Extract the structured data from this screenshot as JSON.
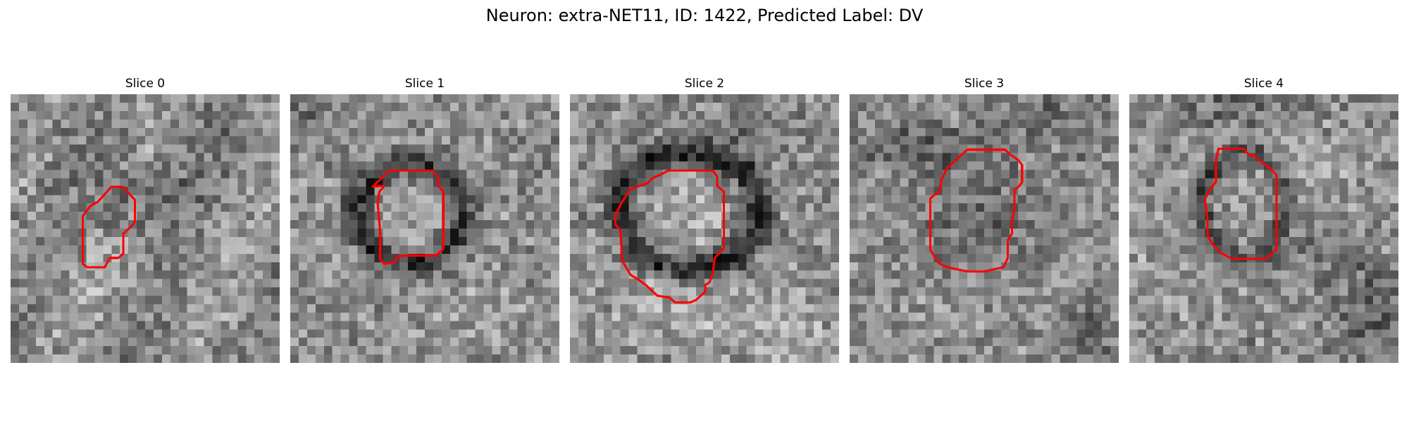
{
  "figure": {
    "title": "Neuron: extra-NET11, ID: 1422, Predicted Label: DV"
  },
  "panels": [
    {
      "title": "Slice 0",
      "image_description": "grayscale noisy microscopy slice",
      "overlay_color": "#ff0000"
    },
    {
      "title": "Slice 1",
      "image_description": "grayscale noisy microscopy slice with dark ring",
      "overlay_color": "#ff0000"
    },
    {
      "title": "Slice 2",
      "image_description": "grayscale noisy microscopy slice with dark ring",
      "overlay_color": "#ff0000"
    },
    {
      "title": "Slice 3",
      "image_description": "grayscale noisy microscopy slice",
      "overlay_color": "#ff0000"
    },
    {
      "title": "Slice 4",
      "image_description": "grayscale noisy microscopy slice",
      "overlay_color": "#ff0000"
    }
  ]
}
